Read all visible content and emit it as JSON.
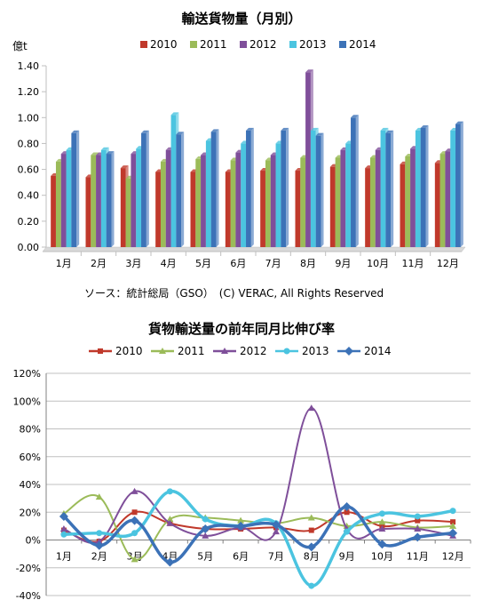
{
  "chart_data": [
    {
      "type": "bar",
      "title": "輸送貨物量（月別）",
      "ylabel": "億t",
      "ylim": [
        0,
        1.4
      ],
      "ytick_labels": [
        "0.00",
        "0.20",
        "0.40",
        "0.60",
        "0.80",
        "1.00",
        "1.20",
        "1.40"
      ],
      "categories": [
        "1月",
        "2月",
        "3月",
        "4月",
        "5月",
        "6月",
        "7月",
        "8月",
        "9月",
        "10月",
        "11月",
        "12月"
      ],
      "series": [
        {
          "name": "2010",
          "color": "#c0392b",
          "values": [
            0.55,
            0.54,
            0.61,
            0.58,
            0.58,
            0.58,
            0.59,
            0.59,
            0.62,
            0.61,
            0.64,
            0.65
          ]
        },
        {
          "name": "2011",
          "color": "#9bbb59",
          "values": [
            0.66,
            0.71,
            0.53,
            0.66,
            0.68,
            0.67,
            0.67,
            0.69,
            0.69,
            0.69,
            0.7,
            0.72
          ]
        },
        {
          "name": "2012",
          "color": "#7f4f9a",
          "values": [
            0.72,
            0.71,
            0.72,
            0.75,
            0.71,
            0.73,
            0.71,
            1.35,
            0.75,
            0.75,
            0.76,
            0.74
          ]
        },
        {
          "name": "2013",
          "color": "#4bc4e0",
          "values": [
            0.75,
            0.75,
            0.76,
            1.02,
            0.82,
            0.8,
            0.8,
            0.9,
            0.8,
            0.9,
            0.9,
            0.9
          ]
        },
        {
          "name": "2014",
          "color": "#3c72b7",
          "values": [
            0.88,
            0.72,
            0.88,
            0.87,
            0.89,
            0.9,
            0.9,
            0.86,
            1.0,
            0.88,
            0.92,
            0.95
          ]
        }
      ],
      "legend": "top",
      "grid": false,
      "source_note": "ソース：統計総局（GSO）　(C) VERAC, All Rights Reserved"
    },
    {
      "type": "line",
      "title": "貨物輸送量の前年同月比伸び率",
      "ylim": [
        -40,
        120
      ],
      "ytick_labels": [
        "-40%",
        "-20%",
        "0%",
        "20%",
        "40%",
        "60%",
        "80%",
        "100%",
        "120%"
      ],
      "categories": [
        "1月",
        "2月",
        "3月",
        "4月",
        "5月",
        "6月",
        "7月",
        "8月",
        "9月",
        "10月",
        "11月",
        "12月"
      ],
      "series": [
        {
          "name": "2010",
          "color": "#c0392b",
          "marker": "square",
          "values": [
            7,
            -1,
            20,
            12,
            8,
            8,
            9,
            7,
            20,
            10,
            14,
            13
          ]
        },
        {
          "name": "2011",
          "color": "#9bbb59",
          "marker": "triangle",
          "values": [
            19,
            31,
            -14,
            15,
            16,
            14,
            12,
            16,
            10,
            13,
            9,
            10
          ]
        },
        {
          "name": "2012",
          "color": "#7f4f9a",
          "marker": "triangle",
          "values": [
            8,
            -1,
            35,
            12,
            3,
            9,
            6,
            95,
            8,
            8,
            8,
            3
          ]
        },
        {
          "name": "2013",
          "color": "#4bc4e0",
          "marker": "circle",
          "values": [
            4,
            5,
            5,
            35,
            15,
            10,
            12,
            -33,
            6,
            19,
            17,
            21
          ]
        },
        {
          "name": "2014",
          "color": "#3c72b7",
          "marker": "diamond",
          "values": [
            17,
            -4,
            14,
            -16,
            8,
            10,
            11,
            -5,
            24,
            -3,
            2,
            5
          ]
        }
      ],
      "legend": "top",
      "grid": true
    }
  ]
}
